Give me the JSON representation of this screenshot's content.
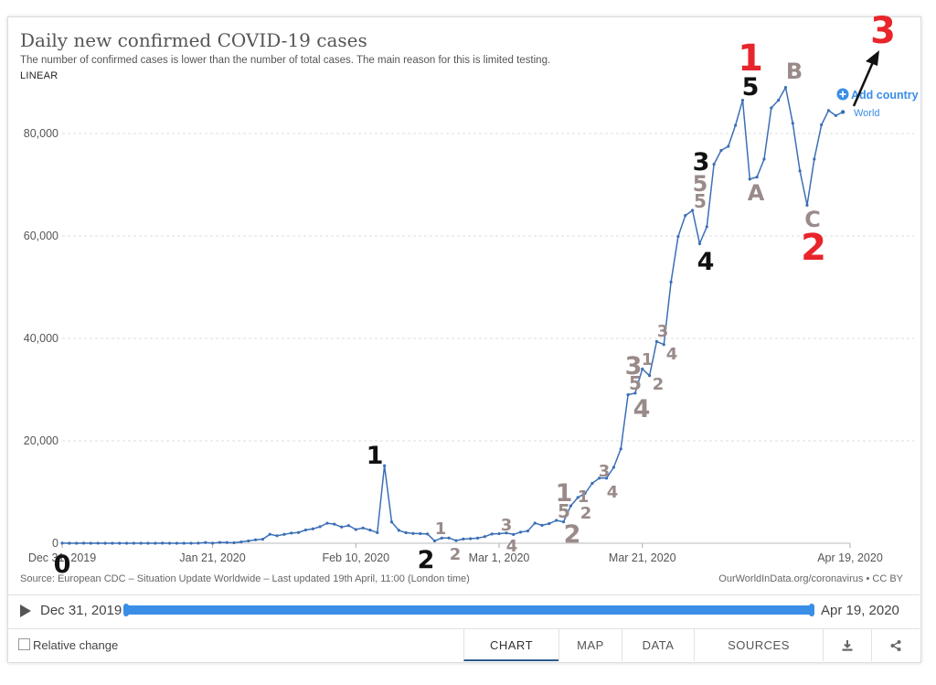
{
  "header": {
    "title": "Daily new confirmed COVID-19 cases",
    "subtitle": "The number of confirmed cases is lower than the number of total cases. The main reason for this is limited testing.",
    "scale_toggle": "LINEAR"
  },
  "legend": {
    "add_country": "Add country",
    "series_label": "World"
  },
  "footer_text": {
    "source": "Source: European CDC – Situation Update Worldwide – Last updated 19th April, 11:00 (London time)",
    "credit": "OurWorldInData.org/coronavirus • CC BY"
  },
  "timeline": {
    "start_label": "Dec 31, 2019",
    "end_label": "Apr 19, 2020"
  },
  "controls": {
    "relative_change": "Relative change"
  },
  "tabs": [
    {
      "label": "CHART",
      "active": true
    },
    {
      "label": "MAP",
      "active": false
    },
    {
      "label": "DATA",
      "active": false
    },
    {
      "label": "SOURCES",
      "active": false
    }
  ],
  "icons": {
    "download": "download-icon",
    "share": "share-icon",
    "play": "play-icon",
    "add": "plus-circle-icon"
  },
  "colors": {
    "line": "#3b6fb6",
    "accent": "#3a8ee6",
    "annotation_black": "#111111",
    "annotation_gray": "#9a8a8a",
    "annotation_red": "#e8252b"
  },
  "chart_data": {
    "type": "line",
    "title": "Daily new confirmed COVID-19 cases",
    "x_start": "2019-12-31",
    "x_end": "2020-04-19",
    "x_ticks": [
      "Dec 31, 2019",
      "Jan 21, 2020",
      "Feb 10, 2020",
      "Mar 1, 2020",
      "Mar 21, 2020",
      "Apr 19, 2020"
    ],
    "y_ticks": [
      "0",
      "20,000",
      "40,000",
      "60,000",
      "80,000"
    ],
    "ylim": [
      0,
      90000
    ],
    "grid": true,
    "series": [
      {
        "name": "World",
        "values": [
          27,
          0,
          0,
          17,
          0,
          15,
          0,
          0,
          0,
          0,
          0,
          1,
          0,
          1,
          17,
          0,
          4,
          4,
          4,
          17,
          136,
          20,
          153,
          140,
          97,
          259,
          441,
          665,
          787,
          1753,
          1466,
          1740,
          1980,
          2102,
          2590,
          2809,
          3235,
          3917,
          3729,
          3163,
          3446,
          2672,
          2981,
          2565,
          2070,
          15141,
          4156,
          2525,
          2052,
          1907,
          1872,
          1806,
          457,
          1009,
          1029,
          519,
          825,
          889,
          1005,
          1294,
          1813,
          1864,
          1998,
          1715,
          2170,
          2394,
          3922,
          3498,
          3833,
          4458,
          4174,
          7302,
          8932,
          9745,
          11700,
          12720,
          12707,
          14823,
          18420,
          29000,
          29300,
          34026,
          32734,
          39400,
          38800,
          51000,
          59900,
          64000,
          65000,
          58500,
          61800,
          74000,
          76700,
          77500,
          81600,
          86500,
          71100,
          71500,
          75000,
          85000,
          86500,
          89000,
          82000,
          72700,
          66000,
          75000,
          81700,
          84500,
          83500,
          84200
        ]
      }
    ],
    "annotations": [
      {
        "text": "0",
        "x": "2019-12-31",
        "y": 0,
        "color": "black"
      },
      {
        "text": "1",
        "x": "2020-02-13",
        "y": 15141,
        "color": "black"
      },
      {
        "text": "2",
        "x": "2020-02-21",
        "y": 457,
        "color": "black"
      },
      {
        "text": "1",
        "x": "2020-02-23",
        "y": 1029,
        "color": "gray"
      },
      {
        "text": "2",
        "x": "2020-02-24",
        "y": 519,
        "color": "gray"
      },
      {
        "text": "3",
        "x": "2020-03-02",
        "y": 1864,
        "color": "gray"
      },
      {
        "text": "4",
        "x": "2020-03-03",
        "y": 1998,
        "color": "gray"
      },
      {
        "text": "1",
        "x": "2020-03-12",
        "y": 4458,
        "color": "gray"
      },
      {
        "text": "5",
        "x": "2020-03-12",
        "y": 4458,
        "color": "gray"
      },
      {
        "text": "2",
        "x": "2020-03-12",
        "y": 4174,
        "color": "gray"
      },
      {
        "text": "1",
        "x": "2020-03-14",
        "y": 8932,
        "color": "gray"
      },
      {
        "text": "2",
        "x": "2020-03-14",
        "y": 8932,
        "color": "gray"
      },
      {
        "text": "3",
        "x": "2020-03-18",
        "y": 12707,
        "color": "gray"
      },
      {
        "text": "4",
        "x": "2020-03-19",
        "y": 12707,
        "color": "gray"
      },
      {
        "text": "3",
        "x": "2020-03-20",
        "y": 29000,
        "color": "gray"
      },
      {
        "text": "5",
        "x": "2020-03-20",
        "y": 29000,
        "color": "gray"
      },
      {
        "text": "4",
        "x": "2020-03-21",
        "y": 29300,
        "color": "gray"
      },
      {
        "text": "1",
        "x": "2020-03-22",
        "y": 34026,
        "color": "gray"
      },
      {
        "text": "2",
        "x": "2020-03-23",
        "y": 32734,
        "color": "gray"
      },
      {
        "text": "3",
        "x": "2020-03-24",
        "y": 39400,
        "color": "gray"
      },
      {
        "text": "4",
        "x": "2020-03-25",
        "y": 38800,
        "color": "gray"
      },
      {
        "text": "3",
        "x": "2020-03-28",
        "y": 65000,
        "color": "black"
      },
      {
        "text": "5",
        "x": "2020-03-28",
        "y": 65000,
        "color": "gray"
      },
      {
        "text": "5",
        "x": "2020-03-28",
        "y": 65000,
        "color": "gray"
      },
      {
        "text": "4",
        "x": "2020-03-29",
        "y": 58500,
        "color": "black"
      },
      {
        "text": "1",
        "x": "2020-04-04",
        "y": 86500,
        "color": "red"
      },
      {
        "text": "5",
        "x": "2020-04-04",
        "y": 86500,
        "color": "black"
      },
      {
        "text": "A",
        "x": "2020-04-05",
        "y": 71100,
        "color": "gray"
      },
      {
        "text": "B",
        "x": "2020-04-10",
        "y": 89000,
        "color": "gray"
      },
      {
        "text": "C",
        "x": "2020-04-13",
        "y": 66000,
        "color": "gray"
      },
      {
        "text": "2",
        "x": "2020-04-13",
        "y": 66000,
        "color": "red"
      },
      {
        "text": "3",
        "x": "2020-04-20",
        "y": 95000,
        "color": "red"
      }
    ]
  }
}
